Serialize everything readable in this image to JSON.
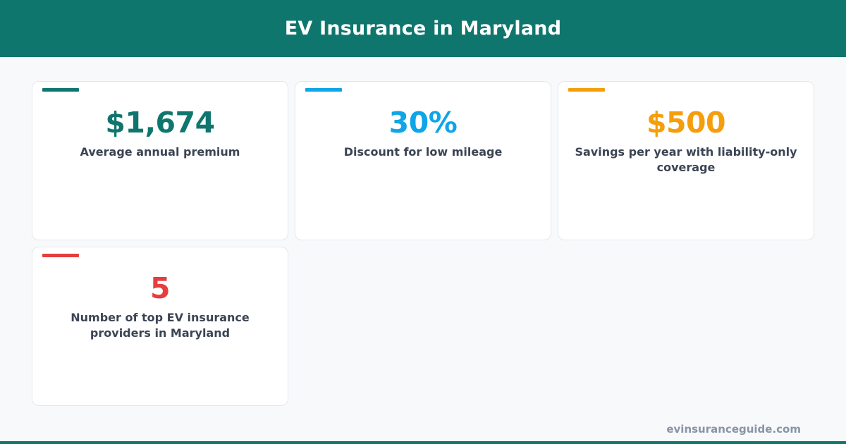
{
  "header": {
    "title": "EV Insurance in Maryland"
  },
  "cards": [
    {
      "value": "$1,674",
      "label": "Average annual premium",
      "color": "#0f766e"
    },
    {
      "value": "30%",
      "label": "Discount for low mileage",
      "color": "#0ea5e9"
    },
    {
      "value": "$500",
      "label": "Savings per year with liability-only coverage",
      "color": "#f59e0b"
    },
    {
      "value": "5",
      "label": "Number of top EV insurance providers in Maryland",
      "color": "#e53e3e"
    }
  ],
  "footer": {
    "url": "evinsuranceguide.com"
  },
  "colors": {
    "brand": "#0f766e"
  }
}
